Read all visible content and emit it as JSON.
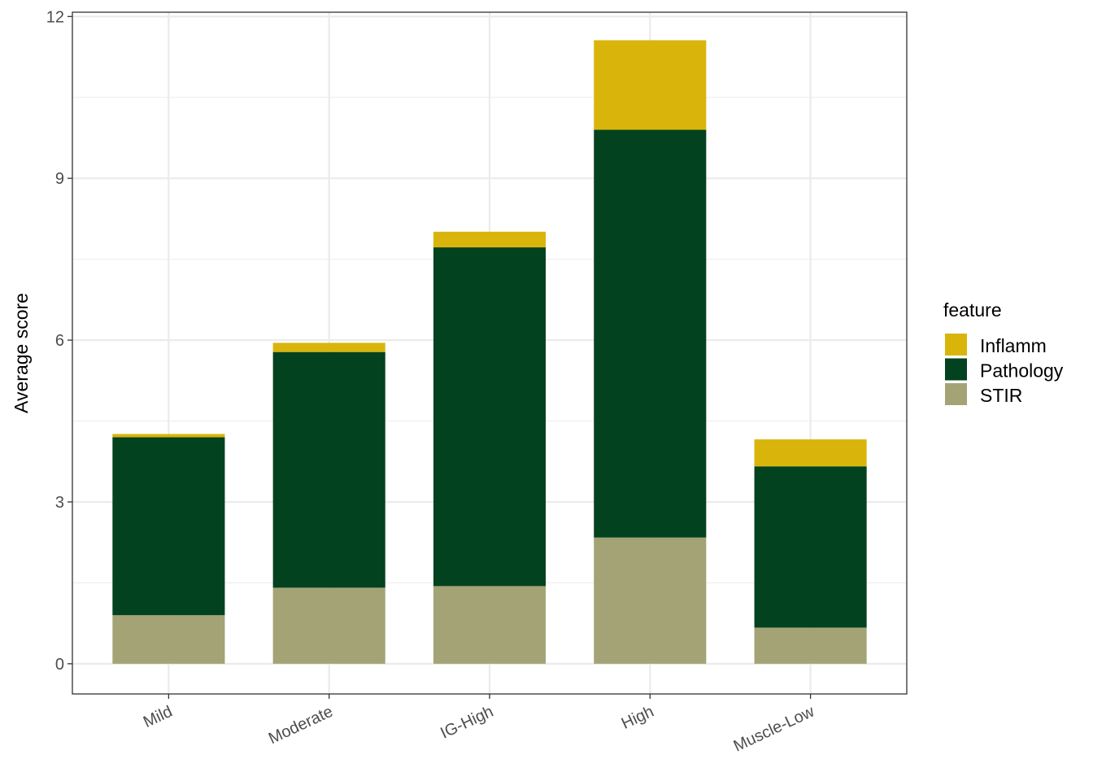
{
  "chart_data": {
    "type": "bar",
    "stacked": true,
    "categories": [
      "Mild",
      "Moderate",
      "IG-High",
      "High",
      "Muscle-Low"
    ],
    "series": [
      {
        "name": "STIR",
        "color": "#a3a375",
        "values": [
          0.9,
          1.41,
          1.44,
          2.34,
          0.67
        ]
      },
      {
        "name": "Pathology",
        "color": "#03421e",
        "values": [
          3.3,
          4.37,
          6.28,
          7.56,
          2.99
        ]
      },
      {
        "name": "Inflamm",
        "color": "#d9b50c",
        "values": [
          0.06,
          0.17,
          0.29,
          1.66,
          0.5
        ]
      }
    ],
    "xlabel": "",
    "ylabel": "Average score",
    "ylim": [
      -0.56,
      12.08
    ],
    "yticks": [
      0,
      3,
      6,
      9,
      12
    ],
    "grid": true,
    "legend": {
      "title": "feature",
      "position": "right",
      "order": [
        "Inflamm",
        "Pathology",
        "STIR"
      ]
    }
  }
}
